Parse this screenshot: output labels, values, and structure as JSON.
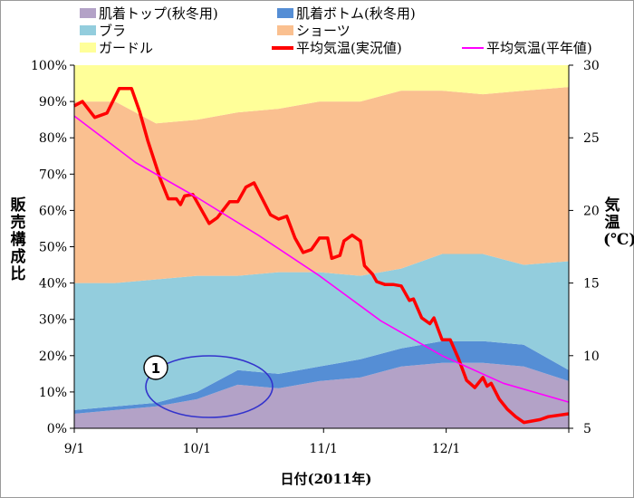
{
  "chart_data": {
    "type": "area",
    "subtype": "stacked-percent-area-with-lines",
    "x_axis": {
      "label": "日付(2011年)",
      "ticks": [
        "9/1",
        "10/1",
        "11/1",
        "12/1"
      ],
      "range": [
        "2011-09-01",
        "2011-12-31"
      ]
    },
    "y_left": {
      "label": "販売構成比",
      "ticks": [
        "0%",
        "10%",
        "20%",
        "30%",
        "40%",
        "50%",
        "60%",
        "70%",
        "80%",
        "90%",
        "100%"
      ],
      "range": [
        0,
        100
      ]
    },
    "y_right": {
      "label": "気温(℃)",
      "ticks": [
        "5",
        "10",
        "15",
        "20",
        "25",
        "30"
      ],
      "range": [
        5,
        30
      ]
    },
    "x_days": [
      0,
      10,
      20,
      30,
      40,
      50,
      60,
      70,
      80,
      90,
      100,
      110,
      121
    ],
    "x_dates": [
      "2011-09-01",
      "2011-09-11",
      "2011-09-21",
      "2011-10-01",
      "2011-10-11",
      "2011-10-21",
      "2011-10-31",
      "2011-11-10",
      "2011-11-20",
      "2011-11-30",
      "2011-12-10",
      "2011-12-20",
      "2011-12-31"
    ],
    "stack_series": [
      {
        "name": "肌着トップ(秋冬用)",
        "color": "#b3a2c7",
        "values": [
          4,
          5,
          6,
          8,
          12,
          11,
          13,
          14,
          17,
          18,
          18,
          17,
          13
        ]
      },
      {
        "name": "肌着ボトム(秋冬用)",
        "color": "#558ed5",
        "values": [
          1,
          1,
          1,
          2,
          4,
          4,
          4,
          5,
          5,
          6,
          6,
          6,
          3
        ]
      },
      {
        "name": "ブラ",
        "color": "#93cddd",
        "values": [
          35,
          34,
          34,
          32,
          26,
          28,
          26,
          23,
          22,
          24,
          24,
          22,
          30
        ]
      },
      {
        "name": "ショーツ",
        "color": "#fac090",
        "values": [
          50,
          50,
          43,
          43,
          45,
          45,
          47,
          48,
          49,
          45,
          44,
          48,
          48
        ]
      },
      {
        "name": "ガードル",
        "color": "#ffff99",
        "values": [
          10,
          10,
          16,
          15,
          13,
          12,
          10,
          10,
          7,
          7,
          8,
          7,
          6
        ]
      }
    ],
    "line_series": [
      {
        "name": "平均気温(実況値)",
        "color": "#ff0000",
        "axis": "right",
        "values": [
          27.2,
          27.5,
          26.4,
          26.7,
          28.4,
          28.4,
          26.8,
          24.8,
          22.2,
          20.8,
          20.8,
          20.4,
          21.0,
          21.1,
          20.1,
          19.1,
          19.5,
          20.6,
          20.6,
          21.6,
          21.9,
          20.8,
          19.7,
          19.4,
          19.6,
          18.1,
          17.1,
          17.3,
          18.1,
          18.1,
          16.7,
          16.9,
          17.9,
          18.3,
          17.9,
          16.2,
          15.6,
          15.1,
          14.9,
          14.9,
          14.8,
          13.8,
          13.9,
          12.6,
          12.2,
          12.6,
          11.1,
          11.1,
          9.8,
          8.3,
          7.8,
          8.5,
          7.9,
          8.1,
          7.0,
          6.3,
          5.8,
          5.4,
          5.5,
          5.6,
          5.8,
          6.0
        ],
        "days": [
          0,
          2,
          5,
          8,
          11,
          14,
          16,
          18,
          21,
          23,
          25,
          26,
          27,
          29,
          31,
          33,
          35,
          38,
          40,
          42,
          44,
          46,
          48,
          50,
          52,
          54,
          56,
          58,
          60,
          62,
          63,
          65,
          66,
          68,
          70,
          71,
          73,
          74,
          76,
          78,
          80,
          82,
          83,
          85,
          87,
          88,
          90,
          92,
          94,
          96,
          98,
          100,
          101,
          102,
          104,
          106,
          108,
          110,
          112,
          114,
          116,
          121
        ]
      },
      {
        "name": "平均気温(平年値)",
        "color": "#ff00ff",
        "axis": "right",
        "values": [
          26.5,
          23.3,
          20.9,
          18.3,
          15.5,
          12.4,
          10.0,
          8.1,
          6.8
        ],
        "days": [
          0,
          15,
          30,
          45,
          60,
          75,
          90,
          105,
          121
        ]
      }
    ],
    "annotation": {
      "label": "1"
    }
  }
}
